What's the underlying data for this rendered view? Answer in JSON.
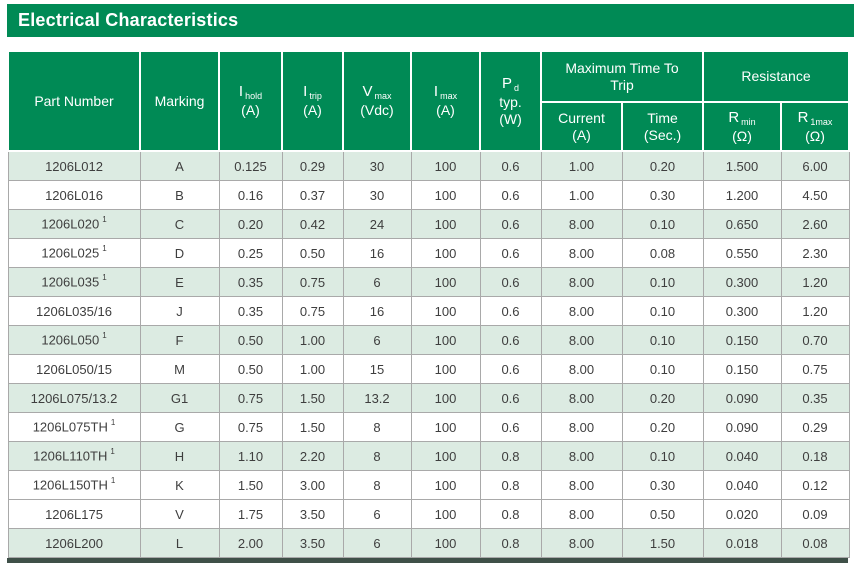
{
  "title": "Electrical Characteristics",
  "colors": {
    "brand_green": "#008a55",
    "shaded_row_green": "#dcebe2",
    "grid_gray": "#a9a9a9",
    "bottom_bar_dark_green": "#3f5048",
    "header_text": "#ffffff",
    "body_text": "#3e3e3e"
  },
  "table": {
    "header": {
      "part": "Part Number",
      "marking": "Marking",
      "i_hold": {
        "sym": "I",
        "sub": "hold",
        "unit": "(A)"
      },
      "i_trip": {
        "sym": "I",
        "sub": "trip",
        "unit": "(A)"
      },
      "v_max": {
        "sym": "V",
        "sub": "max",
        "unit": "(Vdc)"
      },
      "i_max": {
        "sym": "I",
        "sub": "max",
        "unit": "(A)"
      },
      "p_d": {
        "sym": "P",
        "sub": "d",
        "line2": "typ.",
        "unit": "(W)"
      },
      "time_to_trip_group": "Maximum Time To Trip",
      "resistance_group": "Resistance",
      "current": {
        "line1": "Current",
        "unit": "(A)"
      },
      "time": {
        "line1": "Time",
        "unit": "(Sec.)"
      },
      "r_min": {
        "sym": "R",
        "sub": "min",
        "unit": "(Ω)"
      },
      "r_1max": {
        "sym": "R",
        "sub": "1max",
        "unit": "(Ω)"
      }
    },
    "rows": [
      {
        "part": "1206L012",
        "sup": "",
        "marking": "A",
        "values": [
          "0.125",
          "0.29",
          "30",
          "100",
          "0.6",
          "1.00",
          "0.20",
          "1.500",
          "6.00"
        ],
        "shaded": true
      },
      {
        "part": "1206L016",
        "sup": "",
        "marking": "B",
        "values": [
          "0.16",
          "0.37",
          "30",
          "100",
          "0.6",
          "1.00",
          "0.30",
          "1.200",
          "4.50"
        ],
        "shaded": false
      },
      {
        "part": "1206L020",
        "sup": "1",
        "marking": "C",
        "values": [
          "0.20",
          "0.42",
          "24",
          "100",
          "0.6",
          "8.00",
          "0.10",
          "0.650",
          "2.60"
        ],
        "shaded": true
      },
      {
        "part": "1206L025",
        "sup": "1",
        "marking": "D",
        "values": [
          "0.25",
          "0.50",
          "16",
          "100",
          "0.6",
          "8.00",
          "0.08",
          "0.550",
          "2.30"
        ],
        "shaded": false
      },
      {
        "part": "1206L035",
        "sup": "1",
        "marking": "E",
        "values": [
          "0.35",
          "0.75",
          "6",
          "100",
          "0.6",
          "8.00",
          "0.10",
          "0.300",
          "1.20"
        ],
        "shaded": true
      },
      {
        "part": "1206L035/16",
        "sup": "",
        "marking": "J",
        "values": [
          "0.35",
          "0.75",
          "16",
          "100",
          "0.6",
          "8.00",
          "0.10",
          "0.300",
          "1.20"
        ],
        "shaded": false
      },
      {
        "part": "1206L050",
        "sup": "1",
        "marking": "F",
        "values": [
          "0.50",
          "1.00",
          "6",
          "100",
          "0.6",
          "8.00",
          "0.10",
          "0.150",
          "0.70"
        ],
        "shaded": true
      },
      {
        "part": "1206L050/15",
        "sup": "",
        "marking": "M",
        "values": [
          "0.50",
          "1.00",
          "15",
          "100",
          "0.6",
          "8.00",
          "0.10",
          "0.150",
          "0.75"
        ],
        "shaded": false
      },
      {
        "part": "1206L075/13.2",
        "sup": "",
        "marking": "G1",
        "values": [
          "0.75",
          "1.50",
          "13.2",
          "100",
          "0.6",
          "8.00",
          "0.20",
          "0.090",
          "0.35"
        ],
        "shaded": true
      },
      {
        "part": "1206L075TH",
        "sup": "1",
        "marking": "G",
        "values": [
          "0.75",
          "1.50",
          "8",
          "100",
          "0.6",
          "8.00",
          "0.20",
          "0.090",
          "0.29"
        ],
        "shaded": false
      },
      {
        "part": "1206L110TH",
        "sup": "1",
        "marking": "H",
        "values": [
          "1.10",
          "2.20",
          "8",
          "100",
          "0.8",
          "8.00",
          "0.10",
          "0.040",
          "0.18"
        ],
        "shaded": true
      },
      {
        "part": "1206L150TH",
        "sup": "1",
        "marking": "K",
        "values": [
          "1.50",
          "3.00",
          "8",
          "100",
          "0.8",
          "8.00",
          "0.30",
          "0.040",
          "0.12"
        ],
        "shaded": false
      },
      {
        "part": "1206L175",
        "sup": "",
        "marking": "V",
        "values": [
          "1.75",
          "3.50",
          "6",
          "100",
          "0.8",
          "8.00",
          "0.50",
          "0.020",
          "0.09"
        ],
        "shaded": false
      },
      {
        "part": "1206L200",
        "sup": "",
        "marking": "L",
        "values": [
          "2.00",
          "3.50",
          "6",
          "100",
          "0.8",
          "8.00",
          "1.50",
          "0.018",
          "0.08"
        ],
        "shaded": true
      }
    ]
  }
}
